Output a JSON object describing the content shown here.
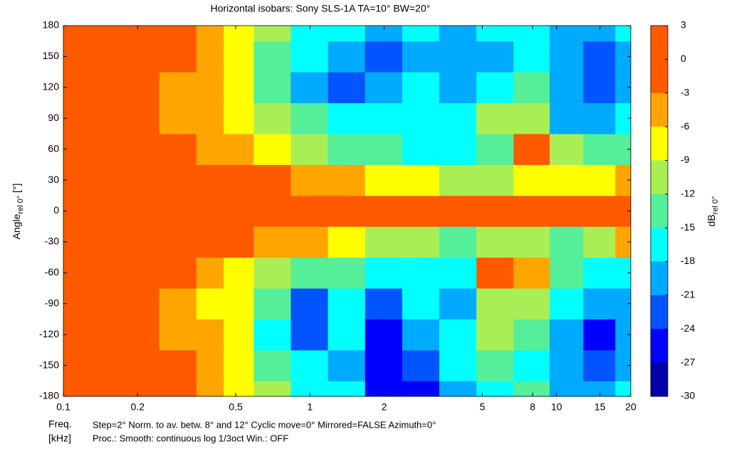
{
  "chart_data": {
    "type": "contour",
    "title": "Horizontal isobars: Sony   SLS-1A  TA=10° BW=20°",
    "y_label": {
      "text": "Angle",
      "subscript": "rel 0°",
      "suffix": " [°]"
    },
    "x_label": {
      "text": "Freq.",
      "unit": "[kHz]"
    },
    "colorbar_label": {
      "text": "dB",
      "subscript": "rel 0°"
    },
    "notes": [
      "Step=2°   Norm. to av. betw. 8° and 12°   Cyclic move=0°   Mirrored=FALSE   Azimuth=0°",
      "Proc.: Smooth: continuous log 1/3oct   Win.: OFF"
    ],
    "x_log": true,
    "xlim": [
      0.1,
      20
    ],
    "xticks": [
      0.1,
      0.2,
      0.5,
      1,
      2,
      5,
      8,
      10,
      15,
      20
    ],
    "ylim": [
      -180,
      180
    ],
    "yticks": [
      -180,
      -150,
      -120,
      -90,
      -60,
      -30,
      0,
      30,
      60,
      90,
      120,
      150,
      180
    ],
    "levels": [
      3,
      0,
      -3,
      -6,
      -9,
      -12,
      -15,
      -18,
      -21,
      -24,
      -27,
      -30
    ],
    "colors": [
      "#ff5a00",
      "#ff5a00",
      "#ffa500",
      "#ffff00",
      "#aaee55",
      "#55ee99",
      "#00ffff",
      "#00aaff",
      "#0055ff",
      "#0000ff",
      "#0000aa"
    ],
    "x": [
      0.1,
      0.15,
      0.2,
      0.3,
      0.4,
      0.5,
      0.7,
      1,
      1.4,
      2,
      2.8,
      4,
      5.6,
      8,
      11,
      15,
      20
    ],
    "y": [
      -180,
      -150,
      -120,
      -90,
      -60,
      -30,
      0,
      30,
      60,
      90,
      120,
      150,
      180
    ],
    "z": [
      [
        0,
        0,
        0,
        -2,
        -4,
        -7,
        -11,
        -16,
        -17,
        -25,
        -24,
        -19,
        -16,
        -14,
        -19,
        -18,
        -15
      ],
      [
        0,
        0,
        0,
        -2,
        -4,
        -8,
        -13,
        -17,
        -19,
        -24,
        -22,
        -17,
        -14,
        -17,
        -20,
        -22,
        -18
      ],
      [
        0,
        0,
        -1,
        -4,
        -5,
        -8,
        -15,
        -22,
        -16,
        -26,
        -20,
        -16,
        -11,
        -14,
        -20,
        -24,
        -20
      ],
      [
        0,
        0,
        -2,
        -4,
        -6,
        -8,
        -14,
        -21,
        -17,
        -22,
        -17,
        -19,
        -11,
        -9,
        -17,
        -20,
        -19
      ],
      [
        0,
        0,
        0,
        -1,
        -4,
        -7,
        -10,
        -14,
        -13,
        -17,
        -16,
        -15,
        -1,
        -3,
        -13,
        -16,
        -17
      ],
      [
        0,
        0,
        0,
        0,
        0,
        -1,
        -3,
        -5,
        -8,
        -10,
        -10,
        -12,
        -10,
        -9,
        -12,
        -9,
        -3
      ],
      [
        0,
        0,
        0,
        0,
        0,
        0,
        0,
        0,
        0,
        0,
        0,
        0,
        0,
        0,
        0,
        0,
        0
      ],
      [
        0,
        0,
        0,
        0,
        0,
        -1,
        -2,
        -4,
        -5,
        -7,
        -8,
        -10,
        -9,
        -8,
        -7,
        -6,
        -5
      ],
      [
        0,
        0,
        0,
        -1,
        -3,
        -5,
        -8,
        -11,
        -13,
        -14,
        -15,
        -17,
        -12,
        -2,
        -9,
        -13,
        -14
      ],
      [
        0,
        0,
        -1,
        -3,
        -5,
        -7,
        -11,
        -14,
        -16,
        -16,
        -17,
        -15,
        -11,
        -10,
        -18,
        -19,
        -17
      ],
      [
        0,
        0,
        -1,
        -3,
        -5,
        -8,
        -13,
        -18,
        -22,
        -19,
        -17,
        -19,
        -17,
        -14,
        -19,
        -22,
        -20
      ],
      [
        0,
        0,
        0,
        -2,
        -4,
        -7,
        -12,
        -17,
        -20,
        -22,
        -20,
        -19,
        -18,
        -16,
        -19,
        -22,
        -18
      ],
      [
        0,
        0,
        0,
        -2,
        -4,
        -7,
        -11,
        -15,
        -17,
        -18,
        -16,
        -18,
        -17,
        -15,
        -18,
        -18,
        -16
      ]
    ]
  }
}
